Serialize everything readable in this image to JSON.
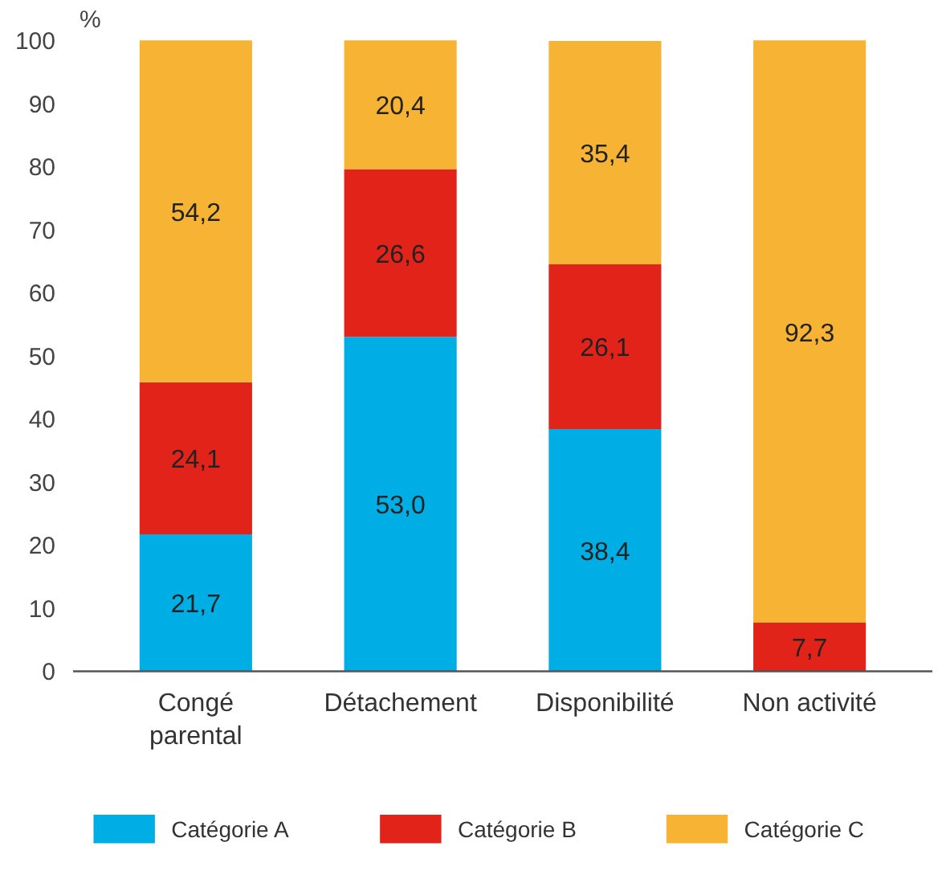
{
  "chart_data": {
    "type": "bar",
    "stacked": true,
    "ylabel": "%",
    "categories": [
      "Congé\nparental",
      "Détachement",
      "Disponibilité",
      "Non activité"
    ],
    "series": [
      {
        "name": "Catégorie A",
        "color": "#00aee6",
        "values": [
          21.7,
          53.0,
          38.4,
          0
        ],
        "value_labels": [
          "21,7",
          "53,0",
          "38,4",
          null
        ]
      },
      {
        "name": "Catégorie B",
        "color": "#e2231a",
        "values": [
          24.1,
          26.6,
          26.1,
          7.7
        ],
        "value_labels": [
          "24,1",
          "26,6",
          "26,1",
          "7,7"
        ]
      },
      {
        "name": "Catégorie C",
        "color": "#f7b334",
        "values": [
          54.2,
          20.4,
          35.4,
          92.3
        ],
        "value_labels": [
          "54,2",
          "20,4",
          "35,4",
          "92,3"
        ]
      }
    ],
    "ylim": [
      0,
      100
    ],
    "yticks": [
      0,
      10,
      20,
      30,
      40,
      50,
      60,
      70,
      80,
      90,
      100
    ],
    "grid": false,
    "legend": "bottom"
  }
}
